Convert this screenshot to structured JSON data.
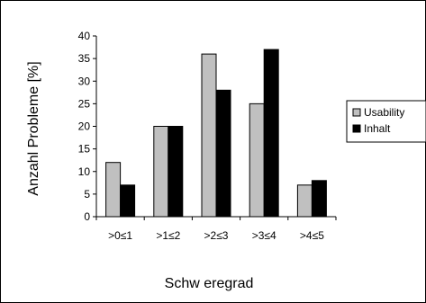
{
  "chart_data": {
    "type": "bar",
    "categories": [
      ">0≤1",
      ">1≤2",
      ">2≤3",
      ">3≤4",
      ">4≤5"
    ],
    "series": [
      {
        "name": "Usability",
        "values": [
          12,
          20,
          36,
          25,
          7
        ],
        "color": "#c0c0c0"
      },
      {
        "name": "Inhalt",
        "values": [
          7,
          20,
          28,
          37,
          8
        ],
        "color": "#000000"
      }
    ],
    "xlabel": "Schw eregrad",
    "ylabel": "Anzahl Probleme [%]",
    "ylim": [
      0,
      40
    ],
    "yticks": [
      0,
      5,
      10,
      15,
      20,
      25,
      30,
      35,
      40
    ],
    "grid": false,
    "legend_position": "right"
  }
}
